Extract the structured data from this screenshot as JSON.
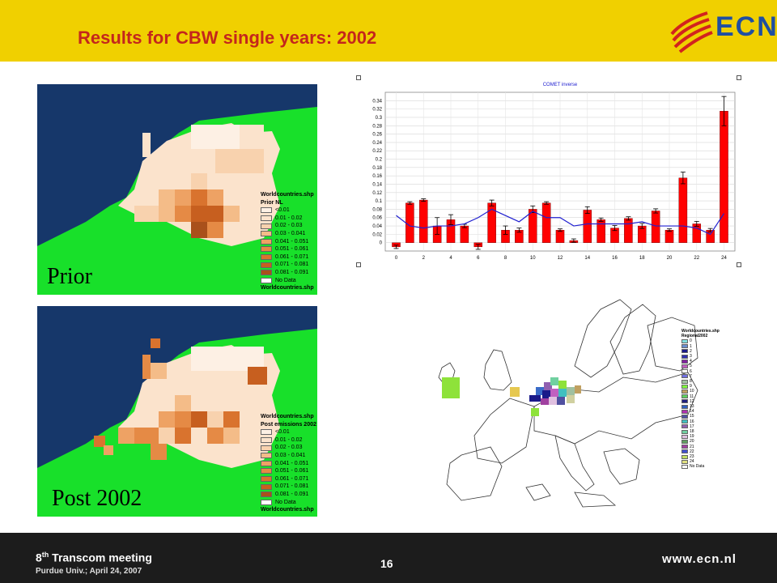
{
  "header": {
    "title": "Results for CBW single years: 2002",
    "logo_text": "ECN",
    "bg_color": "#f0d000",
    "title_color": "#c4261c"
  },
  "maps": [
    {
      "label": "Prior",
      "legend": {
        "layer1": "Worldcountries.shp",
        "layer_title": "Prior NL",
        "classes": [
          "<0.01",
          "0.01 - 0.02",
          "0.02 - 0.03",
          "0.03 - 0.041",
          "0.041 - 0.051",
          "0.051 - 0.061",
          "0.061 - 0.071",
          "0.071 - 0.081",
          "0.081 - 0.091",
          "No Data"
        ],
        "layer2": "Worldcountries.shp"
      }
    },
    {
      "label": "Post 2002",
      "legend": {
        "layer1": "Worldcountries.shp",
        "layer_title": "Post emissions 2002",
        "classes": [
          "<0.01",
          "0.01 - 0.02",
          "0.02 - 0.03",
          "0.03 - 0.041",
          "0.041 - 0.051",
          "0.051 - 0.061",
          "0.061 - 0.071",
          "0.071 - 0.081",
          "0.081 - 0.091",
          "No Data"
        ],
        "layer2": "Worldcountries.shp"
      }
    }
  ],
  "legend_colors": [
    "#fdf0e4",
    "#fbe3cc",
    "#f8d2ae",
    "#f4bc88",
    "#eea264",
    "#e58a45",
    "#d9732e",
    "#c75f1f",
    "#a9501b",
    "#ffffff"
  ],
  "europe_map": {
    "legend_title1": "Worldcountries.shp",
    "legend_title2": "Regional2002",
    "entries": [
      "0",
      "1",
      "2",
      "3",
      "4",
      "5",
      "6",
      "7",
      "8",
      "9",
      "10",
      "11",
      "12",
      "13",
      "14",
      "15",
      "16",
      "17",
      "18",
      "19",
      "20",
      "21",
      "22",
      "23",
      "24",
      "No Data"
    ],
    "colors": [
      "#80e0e0",
      "#6a8fd0",
      "#1a1a8a",
      "#3030b0",
      "#8020a0",
      "#c060c0",
      "#ffffff",
      "#7070e0",
      "#a0c0a0",
      "#80ff40",
      "#c0a060",
      "#60d060",
      "#202080",
      "#3060c0",
      "#b030b0",
      "#5050a0",
      "#40c0c0",
      "#9060b0",
      "#70d0a0",
      "#e0c0e0",
      "#60a060",
      "#a040a0",
      "#4050d0",
      "#c0e060",
      "#e0e080",
      "#ffffff"
    ]
  },
  "chart_data": {
    "type": "bar",
    "title": "COMET inverse",
    "categories": [
      "0",
      "1",
      "2",
      "3",
      "4",
      "5",
      "6",
      "7",
      "8",
      "9",
      "10",
      "11",
      "12",
      "13",
      "14",
      "15",
      "16",
      "17",
      "18",
      "19",
      "20",
      "21",
      "22",
      "23",
      "24"
    ],
    "series": [
      {
        "values": [
          -0.01,
          0.095,
          0.102,
          0.04,
          0.055,
          0.04,
          -0.01,
          0.095,
          0.03,
          0.03,
          0.08,
          0.095,
          0.03,
          0.005,
          0.078,
          0.055,
          0.035,
          0.058,
          0.04,
          0.076,
          0.03,
          0.155,
          0.045,
          0.03,
          0.315
        ]
      },
      {
        "values": [
          0.065,
          0.04,
          0.035,
          0.04,
          0.04,
          0.045,
          0.06,
          0.08,
          0.065,
          0.05,
          0.075,
          0.06,
          0.06,
          0.04,
          0.045,
          0.045,
          0.045,
          0.045,
          0.05,
          0.04,
          0.04,
          0.04,
          0.035,
          0.02,
          0.07
        ]
      }
    ],
    "errors": [
      0.004,
      0.003,
      0.003,
      0.02,
      0.012,
      0.004,
      0.006,
      0.007,
      0.01,
      0.005,
      0.008,
      0.003,
      0.003,
      0.004,
      0.008,
      0.004,
      0.006,
      0.004,
      0.006,
      0.005,
      0.003,
      0.014,
      0.006,
      0.004,
      0.035
    ],
    "xticks": [
      0,
      2,
      4,
      6,
      8,
      10,
      12,
      14,
      16,
      18,
      20,
      22,
      24
    ],
    "yticks": [
      "0",
      "0.02",
      "0.04",
      "0.06",
      "0.08",
      "0.1",
      "0.12",
      "0.14",
      "0.16",
      "0.18",
      "0.2",
      "0.22",
      "0.24",
      "0.26",
      "0.28",
      "0.3",
      "0.32",
      "0.34"
    ],
    "ylim": [
      -0.02,
      0.36
    ],
    "bar_color": "#ff0000",
    "line_color": "#2020d0"
  },
  "footer": {
    "meeting_prefix": "8",
    "meeting_sup": "th",
    "meeting_suffix": " Transcom meeting",
    "location_date": "Purdue Univ.; April 24, 2007",
    "page": "16",
    "url": "www.ecn.nl"
  }
}
